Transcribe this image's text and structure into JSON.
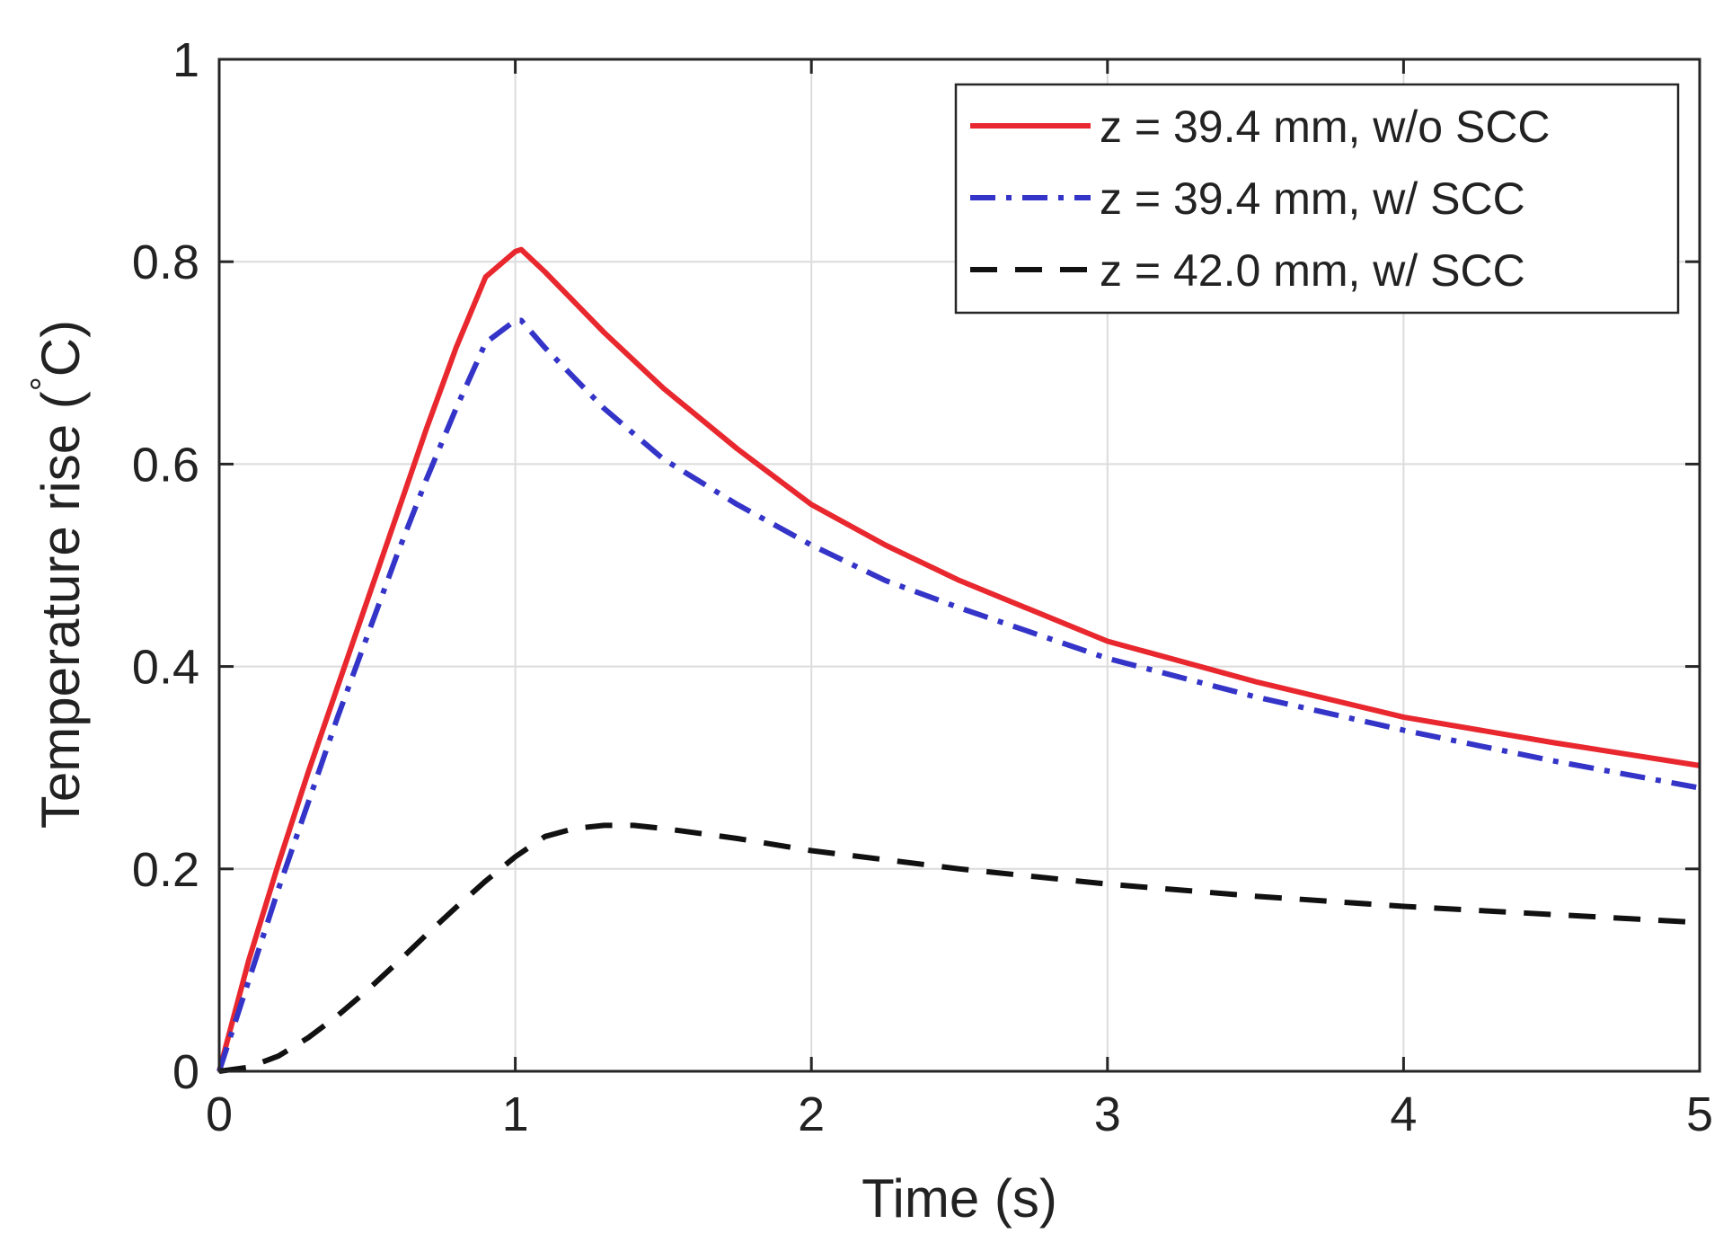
{
  "chart_data": {
    "type": "line",
    "title": "",
    "xlabel": "Time (s)",
    "ylabel_text": "Temperature rise (",
    "ylabel_degree": "°",
    "ylabel_unit": "C)",
    "xlim": [
      0,
      5
    ],
    "ylim": [
      0,
      1
    ],
    "xticks": [
      0,
      1,
      2,
      3,
      4,
      5
    ],
    "yticks": [
      0,
      0.2,
      0.4,
      0.6,
      0.8,
      1
    ],
    "xtick_labels": [
      "0",
      "1",
      "2",
      "3",
      "4",
      "5"
    ],
    "ytick_labels": [
      "0",
      "0.2",
      "0.4",
      "0.6",
      "0.8",
      "1"
    ],
    "grid": true,
    "legend_position": "top-right",
    "series": [
      {
        "name": "z = 39.4 mm, w/o SCC",
        "color": "#e8282e",
        "style": "solid",
        "x": [
          0,
          0.1,
          0.2,
          0.3,
          0.4,
          0.5,
          0.6,
          0.7,
          0.8,
          0.9,
          1.0,
          1.02,
          1.1,
          1.2,
          1.3,
          1.5,
          1.75,
          2.0,
          2.25,
          2.5,
          3.0,
          3.5,
          4.0,
          4.5,
          5.0
        ],
        "y": [
          0,
          0.11,
          0.205,
          0.295,
          0.38,
          0.465,
          0.55,
          0.635,
          0.715,
          0.785,
          0.81,
          0.812,
          0.79,
          0.76,
          0.73,
          0.675,
          0.615,
          0.56,
          0.52,
          0.485,
          0.425,
          0.385,
          0.35,
          0.325,
          0.302
        ]
      },
      {
        "name": "z = 39.4 mm, w/ SCC",
        "color": "#3434c8",
        "style": "dashdot",
        "x": [
          0,
          0.1,
          0.2,
          0.3,
          0.4,
          0.5,
          0.6,
          0.7,
          0.8,
          0.9,
          1.0,
          1.02,
          1.1,
          1.2,
          1.3,
          1.5,
          1.75,
          2.0,
          2.25,
          2.5,
          3.0,
          3.5,
          4.0,
          4.5,
          5.0
        ],
        "y": [
          0,
          0.09,
          0.18,
          0.265,
          0.35,
          0.43,
          0.51,
          0.585,
          0.655,
          0.72,
          0.742,
          0.742,
          0.715,
          0.685,
          0.655,
          0.605,
          0.56,
          0.52,
          0.485,
          0.458,
          0.408,
          0.37,
          0.337,
          0.307,
          0.28
        ]
      },
      {
        "name": "z = 42.0 mm, w/ SCC",
        "color": "#111111",
        "style": "dashed",
        "x": [
          0,
          0.1,
          0.2,
          0.3,
          0.4,
          0.5,
          0.6,
          0.7,
          0.8,
          0.9,
          1.0,
          1.1,
          1.2,
          1.3,
          1.4,
          1.5,
          1.75,
          2.0,
          2.5,
          3.0,
          3.5,
          4.0,
          4.5,
          5.0
        ],
        "y": [
          0,
          0.004,
          0.015,
          0.033,
          0.055,
          0.08,
          0.107,
          0.135,
          0.162,
          0.188,
          0.212,
          0.232,
          0.24,
          0.243,
          0.243,
          0.24,
          0.23,
          0.218,
          0.2,
          0.185,
          0.173,
          0.163,
          0.155,
          0.147
        ]
      }
    ]
  }
}
